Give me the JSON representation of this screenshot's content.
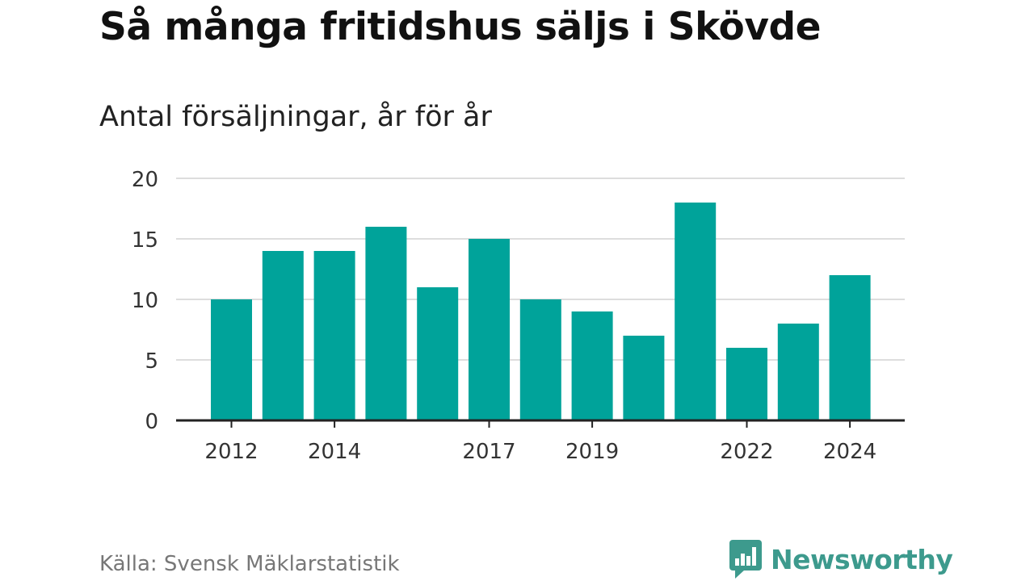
{
  "header": {
    "title": "Så många fritidshus säljs i Skövde",
    "subtitle": "Antal försäljningar, år för år"
  },
  "footer": {
    "source": "Källa: Svensk Mäklarstatistik",
    "brand": "Newsworthy"
  },
  "colors": {
    "bar": "#00a39a",
    "grid": "#dddddd",
    "axis": "#222222",
    "brand": "#3d9a8d"
  },
  "icons": {
    "brand_logo": "bar-chart-speech-bubble-icon"
  },
  "chart_data": {
    "type": "bar",
    "categories": [
      "2012",
      "2013",
      "2014",
      "2015",
      "2016",
      "2017",
      "2018",
      "2019",
      "2020",
      "2021",
      "2022",
      "2023",
      "2024"
    ],
    "values": [
      10,
      14,
      14,
      16,
      11,
      15,
      10,
      9,
      7,
      18,
      6,
      8,
      12
    ],
    "x_tick_labels": [
      "2012",
      "2014",
      "2017",
      "2019",
      "2022",
      "2024"
    ],
    "y_ticks": [
      0,
      5,
      10,
      15,
      20
    ],
    "ylim": [
      0,
      20
    ],
    "grid": true,
    "legend": "none",
    "title": "Så många fritidshus säljs i Skövde",
    "subtitle": "Antal försäljningar, år för år",
    "xlabel": "",
    "ylabel": ""
  }
}
